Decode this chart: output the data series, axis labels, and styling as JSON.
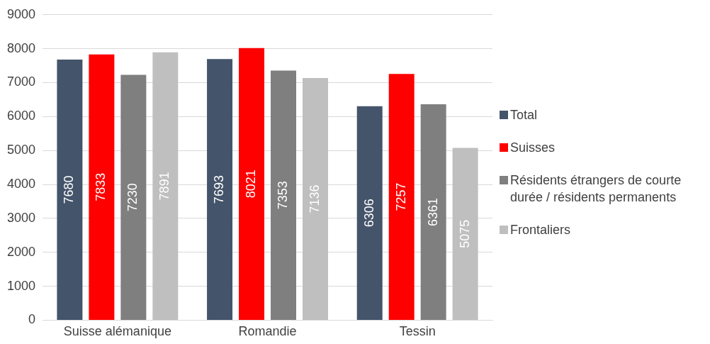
{
  "chart_data": {
    "type": "bar",
    "categories": [
      "Suisse alémanique",
      "Romandie",
      "Tessin"
    ],
    "series": [
      {
        "name": "Total",
        "color": "#44546a",
        "values": [
          7680,
          7693,
          6306
        ]
      },
      {
        "name": "Suisses",
        "color": "#ff0000",
        "values": [
          7833,
          8021,
          7257
        ]
      },
      {
        "name": "Résidents étrangers de courte durée / résidents permanents",
        "color": "#7f7f7f",
        "values": [
          7230,
          7353,
          6361
        ]
      },
      {
        "name": "Frontaliers",
        "color": "#bfbfbf",
        "values": [
          7891,
          7136,
          5075
        ]
      }
    ],
    "ylim": [
      0,
      9000
    ],
    "yticks": [
      0,
      1000,
      2000,
      3000,
      4000,
      5000,
      6000,
      7000,
      8000,
      9000
    ],
    "grid": "y",
    "legend": "right",
    "data_labels": true
  }
}
